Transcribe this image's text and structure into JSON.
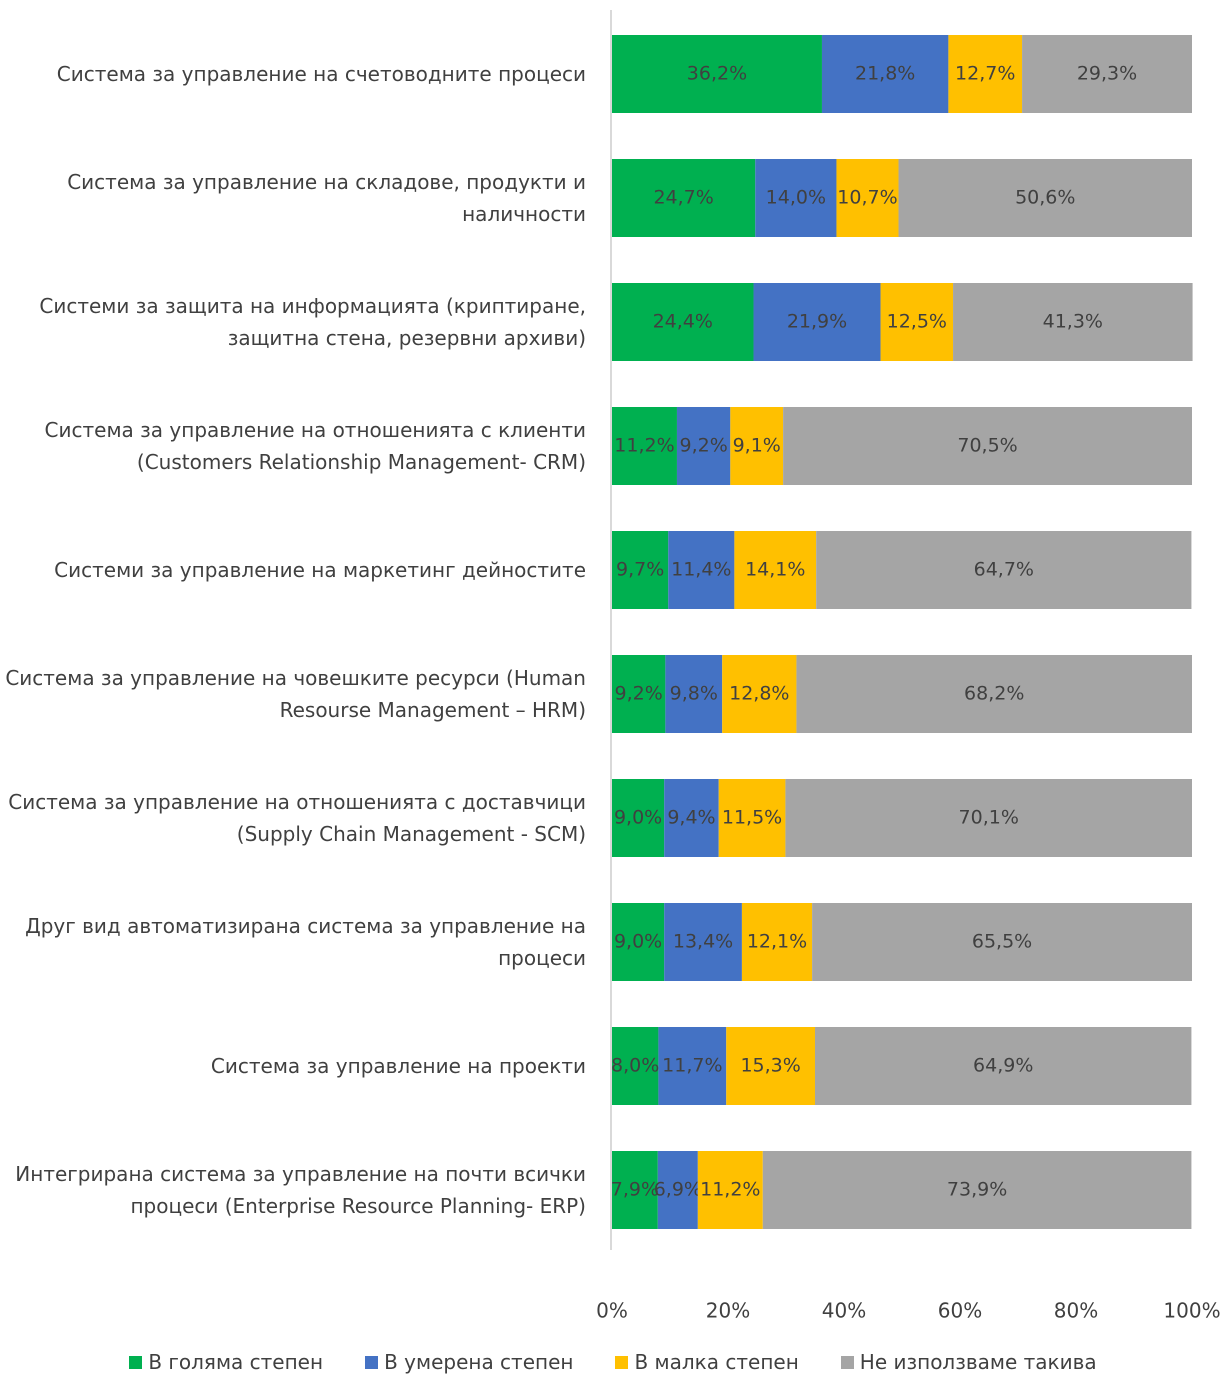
{
  "chart_data": {
    "type": "stacked_barh",
    "categories": [
      "Система за управление на счетоводните процеси",
      "Система за управление на складове, продукти и наличности",
      "Системи за защита на информацията (криптиране, защитна стена, резервни архиви)",
      "Система за управление на отношенията с клиенти (Customers Relationship Management- CRM)",
      "Системи за управление на маркетинг дейностите",
      "Система за управление на човешките ресурси (Human Resourse Management – HRM)",
      "Система за управление на отношенията с доставчици (Supply Chain Management - SCM)",
      "Друг вид автоматизирана система за управление на процеси",
      "Система за управление на проекти",
      "Интегрирана система за управление на почти всички процеси (Enterprise Resource Planning- ERP)"
    ],
    "series": [
      {
        "name": "В голяма степен",
        "color": "#00b050",
        "values": [
          36.2,
          24.7,
          24.4,
          11.2,
          9.7,
          9.2,
          9.0,
          9.0,
          8.0,
          7.9
        ],
        "value_labels": [
          "36,2%",
          "24,7%",
          "24,4%",
          "11,2%",
          "9,7%",
          "9,2%",
          "9,0%",
          "9,0%",
          "8,0%",
          "7,9%"
        ]
      },
      {
        "name": "В умерена степен",
        "color": "#4472c4",
        "values": [
          21.8,
          14.0,
          21.9,
          9.2,
          11.4,
          9.8,
          9.4,
          13.4,
          11.7,
          6.9
        ],
        "value_labels": [
          "21,8%",
          "14,0%",
          "21,9%",
          "9,2%",
          "11,4%",
          "9,8%",
          "9,4%",
          "13,4%",
          "11,7%",
          "6,9%"
        ]
      },
      {
        "name": "В малка степен",
        "color": "#ffc000",
        "values": [
          12.7,
          10.7,
          12.5,
          9.1,
          14.1,
          12.8,
          11.5,
          12.1,
          15.3,
          11.2
        ],
        "value_labels": [
          "12,7%",
          "10,7%",
          "12,5%",
          "9,1%",
          "14,1%",
          "12,8%",
          "11,5%",
          "12,1%",
          "15,3%",
          "11,2%"
        ]
      },
      {
        "name": "Не използваме такива",
        "color": "#a5a5a5",
        "values": [
          29.3,
          50.6,
          41.3,
          70.5,
          64.7,
          68.2,
          70.1,
          65.5,
          64.9,
          73.9
        ],
        "value_labels": [
          "29,3%",
          "50,6%",
          "41,3%",
          "70,5%",
          "64,7%",
          "68,2%",
          "70,1%",
          "65,5%",
          "64,9%",
          "73,9%"
        ]
      }
    ],
    "xlim": [
      0,
      100
    ],
    "xticks": [
      {
        "value": 0,
        "label": "0%"
      },
      {
        "value": 20,
        "label": "20%"
      },
      {
        "value": 40,
        "label": "40%"
      },
      {
        "value": 60,
        "label": "60%"
      },
      {
        "value": 80,
        "label": "80%"
      },
      {
        "value": 100,
        "label": "100%"
      }
    ],
    "grid": false,
    "legend": "bottom"
  }
}
